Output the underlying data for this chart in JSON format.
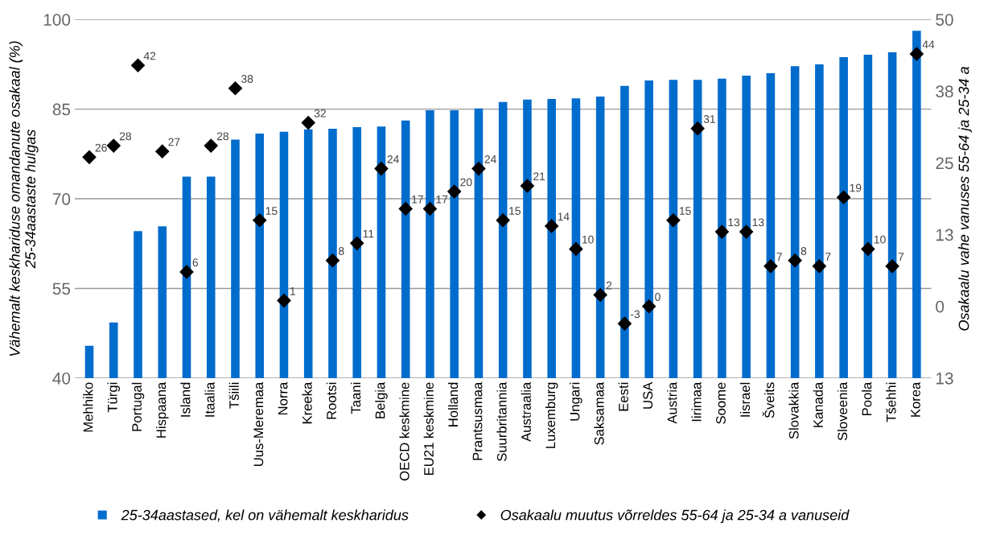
{
  "chart_data": {
    "type": "bar",
    "categories": [
      "Mehhiko",
      "Türgi",
      "Portugal",
      "Hispaana",
      "Island",
      "Itaalia",
      "Tšiili",
      "Uus-Meremaa",
      "Norra",
      "Kreeka",
      "Rootsi",
      "Taani",
      "Belgia",
      "OECD keskmine",
      "EU21 keskmine",
      "Holland",
      "Prantsusmaa",
      "Suurbritannia",
      "Austraalia",
      "Luxemburg",
      "Ungari",
      "Saksamaa",
      "Eesti",
      "USA",
      "Austria",
      "Iirimaa",
      "Soome",
      "Iisrael",
      "Šveits",
      "Slovakkia",
      "Kanada",
      "Sloveenia",
      "Poola",
      "Tšehhi",
      "Korea"
    ],
    "series": [
      {
        "name": "25-34aastased, kel on vähemalt keskharidus",
        "color": "#006ccc",
        "values": [
          45.4,
          49.3,
          64.6,
          65.4,
          73.7,
          73.7,
          79.9,
          80.9,
          81.2,
          81.6,
          81.7,
          82.0,
          82.1,
          83.1,
          84.8,
          84.8,
          85.1,
          86.2,
          86.6,
          86.7,
          86.8,
          87.1,
          88.9,
          89.8,
          89.9,
          89.9,
          90.1,
          90.6,
          91.0,
          92.2,
          92.5,
          93.7,
          94.1,
          94.5,
          98.1
        ]
      },
      {
        "name": "Osakaalu muutus võrreldes 55-64 ja 25-34 a vanuseid",
        "type": "scatter",
        "axis": "y2",
        "color": "#000000",
        "marker": "diamond",
        "data_labels": true,
        "values": [
          26,
          28,
          42,
          27,
          6,
          28,
          38,
          15,
          1,
          32,
          8,
          11,
          24,
          17,
          17,
          20,
          24,
          15,
          21,
          14,
          10,
          2,
          -3,
          0,
          15,
          31,
          13,
          13,
          7,
          8,
          7,
          19,
          10,
          7,
          44
        ]
      }
    ],
    "ylabel": "Vähemalt keskhariduse omandanute osakaal (%)\n25-34aastaste hulgas",
    "y2label": "Osakaalu vahe vanuses 55-64 ja 25-34 a",
    "ylim": [
      40,
      100
    ],
    "yticks": [
      40,
      55,
      70,
      85,
      100
    ],
    "y2lim": [
      -12.5,
      50
    ],
    "y2ticks": [
      {
        "value": -12.5,
        "label": "13"
      },
      0,
      {
        "value": 12.5,
        "label": "13"
      },
      25,
      {
        "value": 37.5,
        "label": "38"
      },
      50
    ],
    "grid": "y",
    "legend": "bottom"
  }
}
